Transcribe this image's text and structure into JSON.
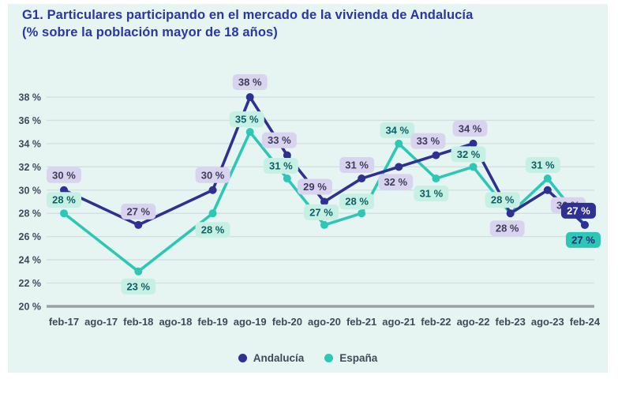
{
  "title": {
    "line1": "G1. Particulares participando en el mercado de la vivienda de Andalucía",
    "line2": "(% sobre la población mayor de 18 años)"
  },
  "colors": {
    "panel_bg": "#e6f5f2",
    "title": "#2936a8",
    "grid": "#d2dedf",
    "axis_base": "#9aa0a4",
    "tick_text": "#3d4b5a",
    "andalucia": "#2e3192",
    "espana": "#2cc7b5"
  },
  "chart_data": {
    "type": "line",
    "title": "G1. Particulares participando en el mercado de la vivienda de Andalucía (% sobre la población mayor de 18 años)",
    "xlabel": "",
    "ylabel": "",
    "grid": true,
    "legend_position": "bottom",
    "ylim": [
      20,
      38
    ],
    "y_tick_values": [
      38,
      36,
      34,
      32,
      30,
      28,
      26,
      24,
      22,
      20
    ],
    "y_tick_labels": [
      "38 %",
      "36 %",
      "34 %",
      "32 %",
      "30 %",
      "28 %",
      "26 %",
      "24 %",
      "22 %",
      "20 %"
    ],
    "label_suffix": " %",
    "categories": [
      "feb-17",
      "ago-17",
      "feb-18",
      "ago-18",
      "feb-19",
      "ago-19",
      "feb-20",
      "ago-20",
      "feb-21",
      "ago-21",
      "feb-22",
      "ago-22",
      "feb-23",
      "ago-23",
      "feb-24"
    ],
    "series": [
      {
        "name": "España",
        "color": "#2cc7b5",
        "label_bg": "#c7f0e4",
        "label_color": "#0e5f63",
        "highlight_last": true,
        "highlight_bg": "#2cc7b5",
        "highlight_color": "#1e2a78",
        "values": [
          28,
          null,
          23,
          null,
          28,
          35,
          31,
          27,
          28,
          34,
          31,
          32,
          28,
          31,
          27
        ],
        "label_offsets": [
          [
            0,
            -17
          ],
          null,
          [
            0,
            19
          ],
          null,
          [
            0,
            21
          ],
          [
            -4,
            -16
          ],
          [
            -8,
            -16
          ],
          [
            -4,
            -16
          ],
          [
            -6,
            -15
          ],
          [
            -2,
            -17
          ],
          [
            -6,
            19
          ],
          [
            -6,
            -16
          ],
          [
            -10,
            -17
          ],
          [
            -6,
            -17
          ],
          [
            -2,
            19
          ]
        ]
      },
      {
        "name": "Andalucía",
        "color": "#2e3192",
        "label_bg": "#d9d4ee",
        "label_color": "#3f3b5e",
        "highlight_last": true,
        "highlight_bg": "#2e3192",
        "highlight_color": "#ffffff",
        "values": [
          30,
          null,
          27,
          null,
          30,
          38,
          33,
          29,
          31,
          32,
          33,
          34,
          28,
          30,
          27
        ],
        "label_offsets": [
          [
            0,
            -19
          ],
          null,
          [
            0,
            -17
          ],
          null,
          [
            0,
            -19
          ],
          [
            0,
            -19
          ],
          [
            -10,
            -19
          ],
          [
            -12,
            -19
          ],
          [
            -6,
            -17
          ],
          [
            -4,
            19
          ],
          [
            -10,
            -18
          ],
          [
            -4,
            -19
          ],
          [
            -4,
            19
          ],
          [
            26,
            19
          ],
          [
            -8,
            -18
          ]
        ]
      }
    ]
  },
  "legend": {
    "items": [
      {
        "label": "Andalucía",
        "color": "#2e3192"
      },
      {
        "label": "España",
        "color": "#2cc7b5"
      }
    ]
  }
}
